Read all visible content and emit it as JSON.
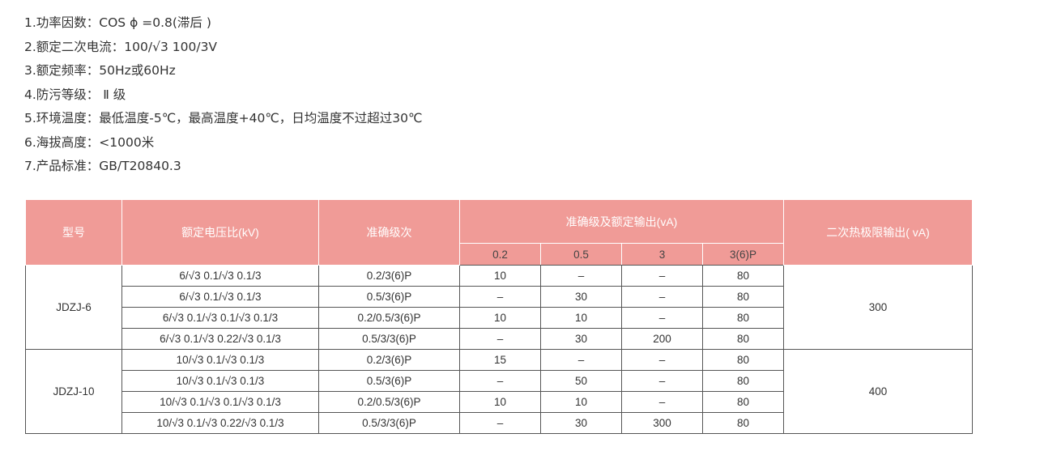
{
  "specs": [
    "1.功率因数：COS ϕ =0.8(滞后 )",
    "2.额定二次电流：100/√3 100/3V",
    "3.额定频率：50Hz或60Hz",
    "4.防污等级： Ⅱ 级",
    "5.环境温度：最低温度-5℃，最高温度+40℃，日均温度不过超过30℃",
    "6.海拔高度：<1000米",
    "7.产品标准：GB/T20840.3"
  ],
  "table": {
    "headers": {
      "model": "型号",
      "ratio": "额定电压比(kV)",
      "accuracy": "准确级次",
      "output": "准确级及额定输出(vA)",
      "thermal": "二次热极限输出( vA)",
      "sub": [
        "0.2",
        "0.5",
        "3",
        "3(6)P"
      ]
    },
    "groups": [
      {
        "model": "JDZJ-6",
        "thermal": "300",
        "rows": [
          [
            "6/√3  0.1/√3  0.1/3",
            "0.2/3(6)P",
            "10",
            "–",
            "–",
            "80"
          ],
          [
            "6/√3  0.1/√3  0.1/3",
            "0.5/3(6)P",
            "–",
            "30",
            "–",
            "80"
          ],
          [
            "6/√3 0.1/√3 0.1/√3 0.1/3",
            "0.2/0.5/3(6)P",
            "10",
            "10",
            "–",
            "80"
          ],
          [
            "6/√3 0.1/√3 0.22/√3 0.1/3",
            "0.5/3/3(6)P",
            "–",
            "30",
            "200",
            "80"
          ]
        ]
      },
      {
        "model": "JDZJ-10",
        "thermal": "400",
        "rows": [
          [
            "10/√3  0.1/√3  0.1/3",
            "0.2/3(6)P",
            "15",
            "–",
            "–",
            "80"
          ],
          [
            "10/√3  0.1/√3  0.1/3",
            "0.5/3(6)P",
            "–",
            "50",
            "–",
            "80"
          ],
          [
            "10/√3 0.1/√3 0.1/√3 0.1/3",
            "0.2/0.5/3(6)P",
            "10",
            "10",
            "–",
            "80"
          ],
          [
            "10/√3 0.1/√3 0.22/√3 0.1/3",
            "0.5/3/3(6)P",
            "–",
            "30",
            "300",
            "80"
          ]
        ]
      }
    ]
  }
}
